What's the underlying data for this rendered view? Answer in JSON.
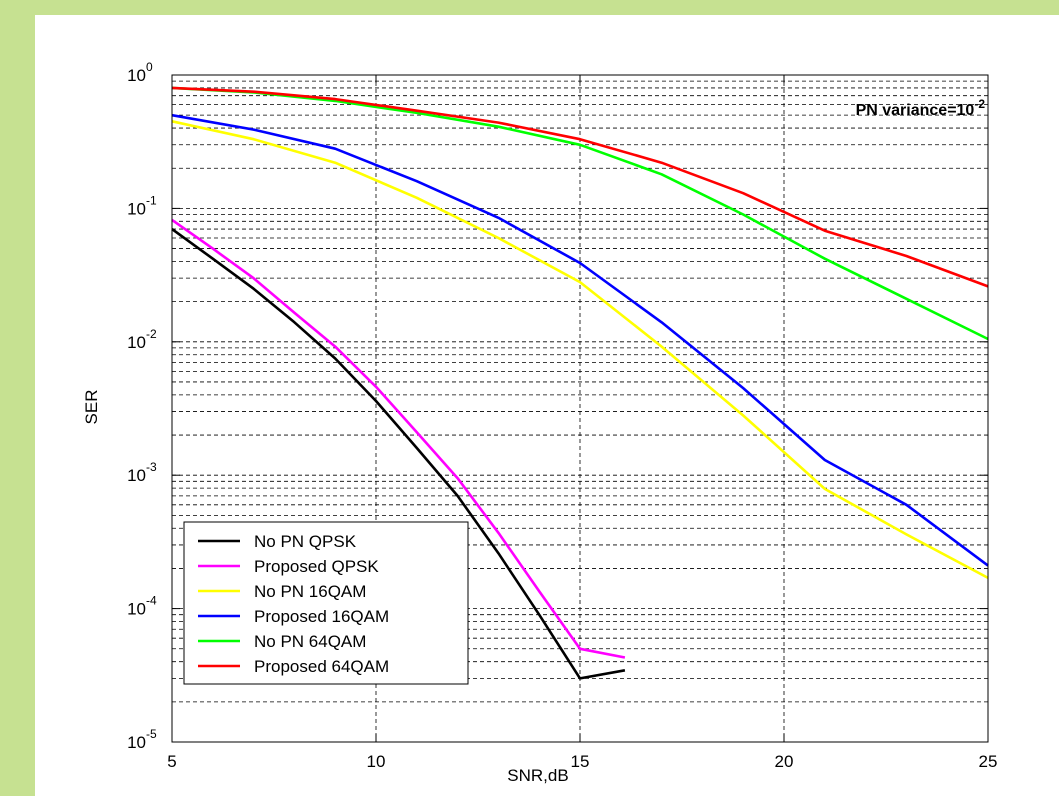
{
  "chart_data": {
    "type": "line",
    "xlabel": "SNR,dB",
    "ylabel": "SER",
    "xlim": [
      5,
      25
    ],
    "ylim": [
      1e-05,
      1
    ],
    "yscale": "log",
    "grid": true,
    "grid_style": "dashed",
    "legend_position": "bottom-left",
    "xticks": [
      5,
      10,
      15,
      20,
      25
    ],
    "yticks": [
      {
        "base": "10",
        "exp": "0",
        "value": 1
      },
      {
        "base": "10",
        "exp": "-1",
        "value": 0.1
      },
      {
        "base": "10",
        "exp": "-2",
        "value": 0.01
      },
      {
        "base": "10",
        "exp": "-3",
        "value": 0.001
      },
      {
        "base": "10",
        "exp": "-4",
        "value": 0.0001
      },
      {
        "base": "10",
        "exp": "-5",
        "value": 1e-05
      }
    ],
    "annotation": {
      "text": "PN variance=10",
      "exp": "-2",
      "color": "#0000ff"
    },
    "series": [
      {
        "name": "No PN QPSK",
        "color": "#000000",
        "x": [
          5,
          6,
          7,
          8,
          9,
          10,
          11,
          12,
          13,
          14,
          15,
          16.1
        ],
        "y": [
          0.07,
          0.042,
          0.025,
          0.014,
          0.0075,
          0.0036,
          0.0016,
          0.0007,
          0.00026,
          9e-05,
          3e-05,
          3.45e-05
        ]
      },
      {
        "name": "Proposed QPSK",
        "color": "#ff00ff",
        "x": [
          5,
          6,
          7,
          8,
          9,
          10,
          11,
          12,
          13,
          14,
          15,
          16.1
        ],
        "y": [
          0.082,
          0.05,
          0.03,
          0.0165,
          0.0092,
          0.0046,
          0.0021,
          0.00095,
          0.00037,
          0.000135,
          5e-05,
          4.3e-05
        ]
      },
      {
        "name": "No PN 16QAM",
        "color": "#ffff00",
        "x": [
          5,
          7,
          9,
          11,
          13,
          15,
          17,
          19,
          21,
          23,
          25
        ],
        "y": [
          0.45,
          0.33,
          0.22,
          0.12,
          0.06,
          0.028,
          0.0092,
          0.0028,
          0.00079,
          0.00036,
          0.00017
        ]
      },
      {
        "name": "Proposed 16QAM",
        "color": "#0000ff",
        "x": [
          5,
          7,
          9,
          11,
          13,
          15,
          17,
          19,
          21,
          23,
          25
        ],
        "y": [
          0.5,
          0.39,
          0.28,
          0.16,
          0.085,
          0.039,
          0.014,
          0.0045,
          0.0013,
          0.0006,
          0.00021
        ]
      },
      {
        "name": "No PN 64QAM",
        "color": "#00ff00",
        "x": [
          5,
          7,
          9,
          11,
          13,
          15,
          17,
          19,
          21,
          23,
          25
        ],
        "y": [
          0.8,
          0.74,
          0.64,
          0.52,
          0.41,
          0.3,
          0.18,
          0.09,
          0.042,
          0.021,
          0.0105
        ]
      },
      {
        "name": "Proposed 64QAM",
        "color": "#ff0000",
        "x": [
          5,
          7,
          9,
          11,
          13,
          15,
          17,
          19,
          21,
          23,
          25
        ],
        "y": [
          0.8,
          0.75,
          0.66,
          0.54,
          0.44,
          0.33,
          0.22,
          0.13,
          0.068,
          0.044,
          0.026
        ]
      }
    ]
  }
}
